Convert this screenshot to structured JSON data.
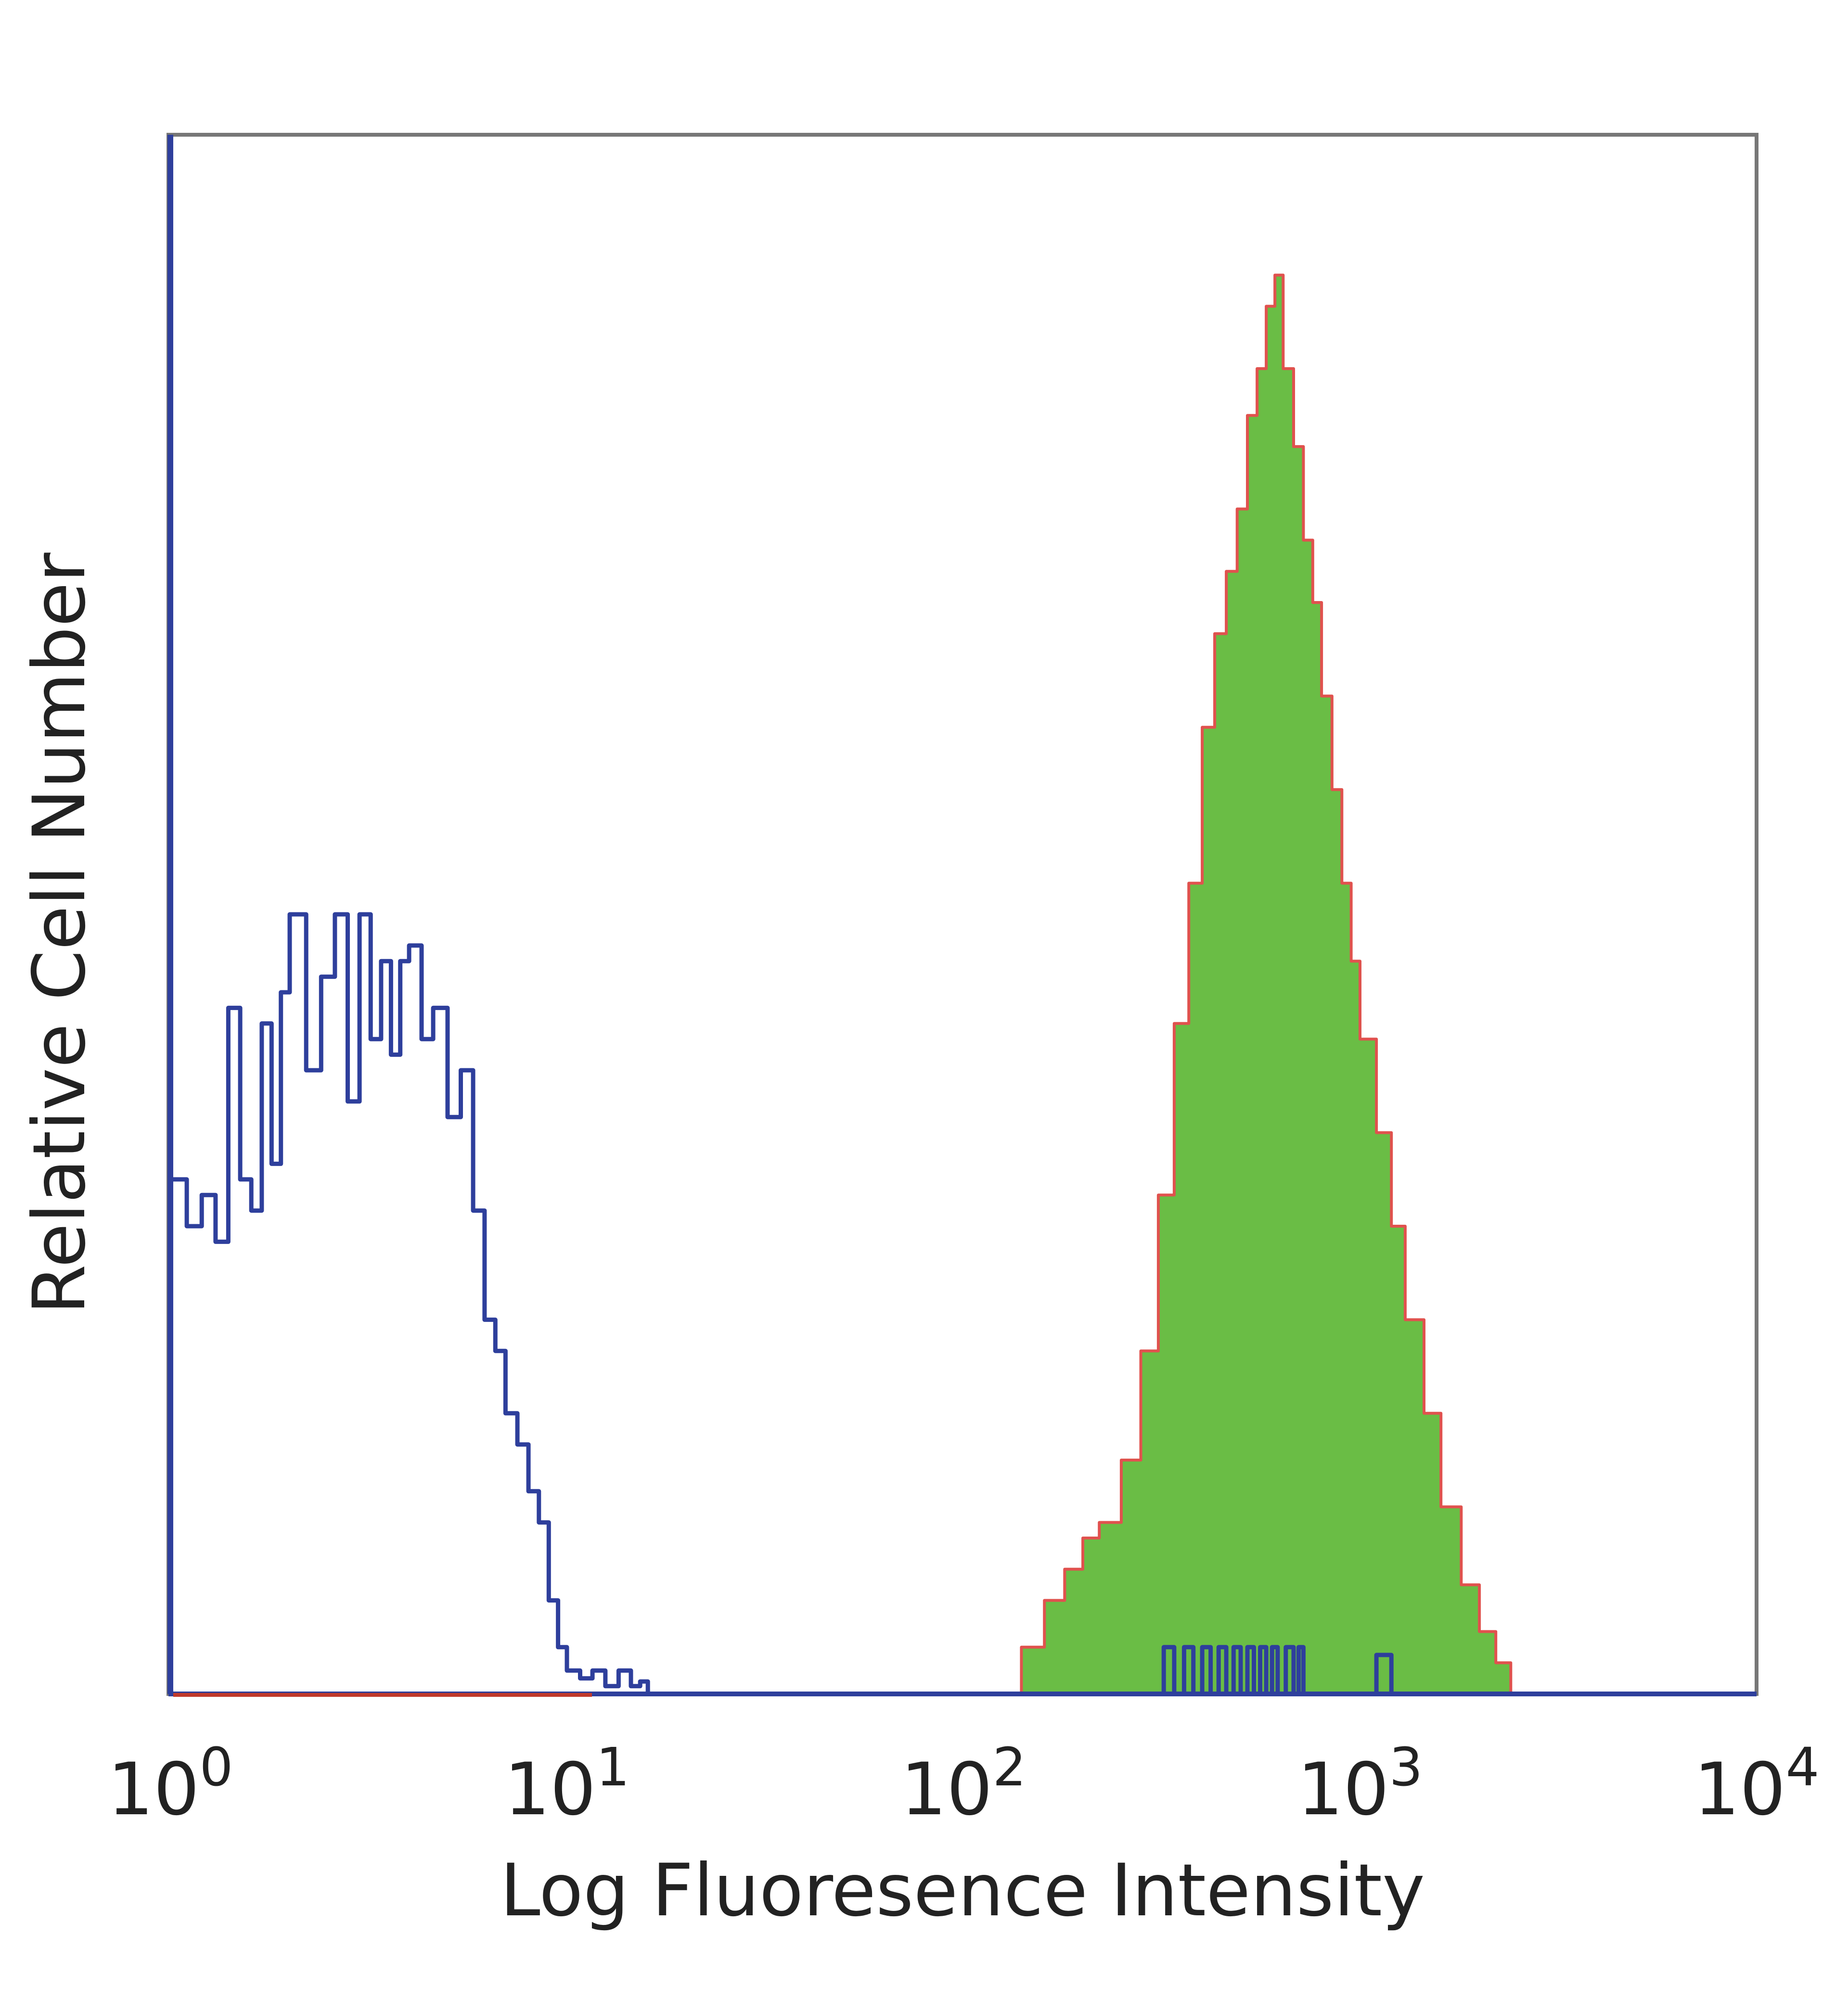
{
  "chart_data": {
    "type": "area",
    "xlabel": "Log Fluoresence Intensity",
    "ylabel": "Relative Cell Number",
    "x_scale": "log10",
    "xlim": [
      1,
      10000
    ],
    "ylim": [
      0,
      100
    ],
    "grid": false,
    "legend": "none",
    "x_ticks": [
      {
        "value": 1,
        "base": "10",
        "exp": "0"
      },
      {
        "value": 10,
        "base": "10",
        "exp": "1"
      },
      {
        "value": 100,
        "base": "10",
        "exp": "2"
      },
      {
        "value": 1000,
        "base": "10",
        "exp": "3"
      },
      {
        "value": 10000,
        "base": "10",
        "exp": "4"
      }
    ],
    "series": [
      {
        "style": "outline",
        "color": "#2e3f9c",
        "x": [
          1.0,
          1.1,
          1.2,
          1.3,
          1.4,
          1.5,
          1.6,
          1.7,
          1.8,
          1.9,
          2.0,
          2.2,
          2.4,
          2.6,
          2.8,
          3.0,
          3.2,
          3.4,
          3.6,
          3.8,
          4.0,
          4.3,
          4.6,
          5.0,
          5.4,
          5.8,
          6.2,
          6.6,
          7.0,
          7.5,
          8.0,
          8.5,
          9.0,
          9.5,
          10.0,
          10.8,
          11.6,
          12.5,
          13.5,
          14.5,
          15.3,
          16.0
        ],
        "y": [
          33,
          30,
          32,
          29,
          44,
          33,
          31,
          43,
          34,
          45,
          50,
          40,
          46,
          50,
          38,
          50,
          42,
          47,
          41,
          47,
          48,
          42,
          44,
          37,
          40,
          31,
          24,
          22,
          18,
          16,
          13,
          11,
          6,
          3,
          1.5,
          1,
          1.5,
          0.5,
          1.5,
          0.5,
          0.8,
          0
        ]
      },
      {
        "style": "filled",
        "color": "#6abd45",
        "stroke": "#e0524e",
        "x": [
          120,
          140,
          160,
          180,
          200,
          220,
          250,
          280,
          310,
          340,
          370,
          400,
          430,
          460,
          490,
          520,
          550,
          580,
          610,
          640,
          680,
          720,
          760,
          800,
          850,
          900,
          950,
          1000,
          1100,
          1200,
          1300,
          1450,
          1600,
          1800,
          2000,
          2200,
          2400
        ],
        "y": [
          0,
          3,
          6,
          8,
          10,
          11,
          15,
          22,
          32,
          43,
          52,
          62,
          68,
          72,
          76,
          82,
          85,
          89,
          91,
          85,
          80,
          74,
          70,
          64,
          58,
          52,
          47,
          42,
          36,
          30,
          24,
          18,
          12,
          7,
          4,
          2,
          0
        ]
      },
      {
        "style": "outline",
        "color": "#2e3f9c",
        "x": [
          300,
          320,
          340,
          360,
          380,
          400,
          420,
          440,
          460,
          480,
          500,
          520,
          540,
          560,
          580,
          600,
          620,
          650,
          680,
          700,
          720,
          760,
          800,
          900,
          1000,
          1100,
          1200,
          1300
        ],
        "y": [
          0,
          3,
          0,
          3,
          0,
          3,
          0,
          3,
          0,
          3,
          0,
          3,
          0,
          3,
          0,
          3,
          0,
          3,
          0,
          3,
          0,
          0,
          0,
          0,
          0,
          2.5,
          0,
          0
        ]
      }
    ]
  }
}
